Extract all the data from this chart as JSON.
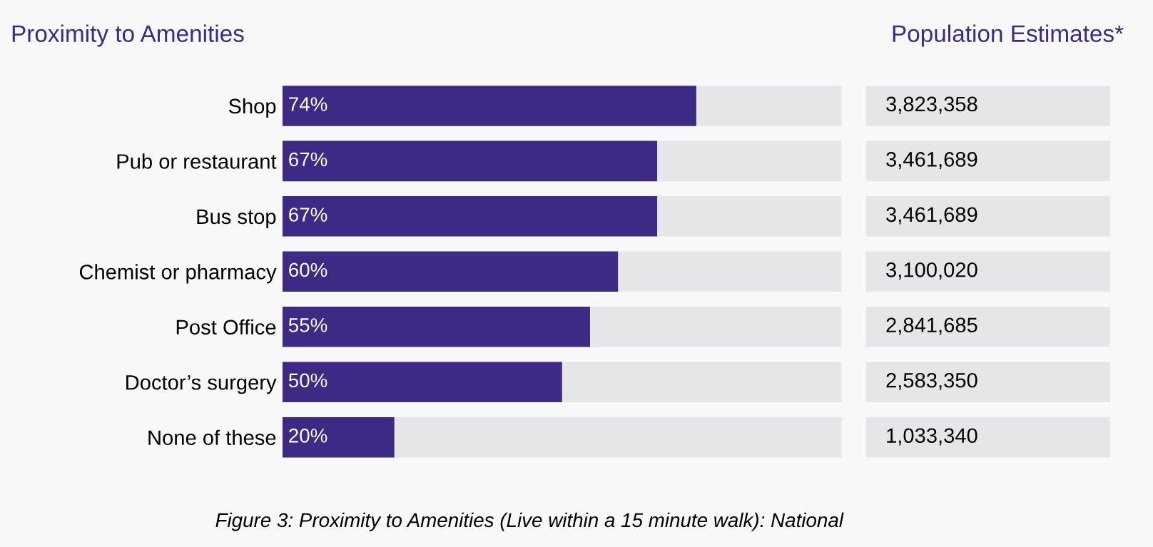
{
  "chart_data": [
    {
      "type": "bar",
      "orientation": "horizontal",
      "title": "Proximity to Amenities",
      "categories": [
        "Shop",
        "Pub or restaurant",
        "Bus stop",
        "Chemist or pharmacy",
        "Post Office",
        "Doctor’s surgery",
        "None of these"
      ],
      "values": [
        74,
        67,
        67,
        60,
        55,
        50,
        20
      ],
      "value_labels": [
        "74%",
        "67%",
        "67%",
        "60%",
        "55%",
        "50%",
        "20%"
      ],
      "color": "#3d2a85",
      "xlim": [
        0,
        100
      ],
      "tick_labels": "y",
      "grid": false,
      "legend": false,
      "annotations": [
        "Figure 3: Proximity to Amenities (Live within a 15 minute walk): National"
      ]
    },
    {
      "type": "other",
      "title": "Population Estimates*",
      "values": [
        3823358,
        3461689,
        3461689,
        3100020,
        2841685,
        2583350,
        1033340
      ],
      "value_labels": [
        "3,823,358",
        "3,461,689",
        "3,461,689",
        "3,100,020",
        "2,841,685",
        "2,583,350",
        "1,033,340"
      ]
    }
  ]
}
